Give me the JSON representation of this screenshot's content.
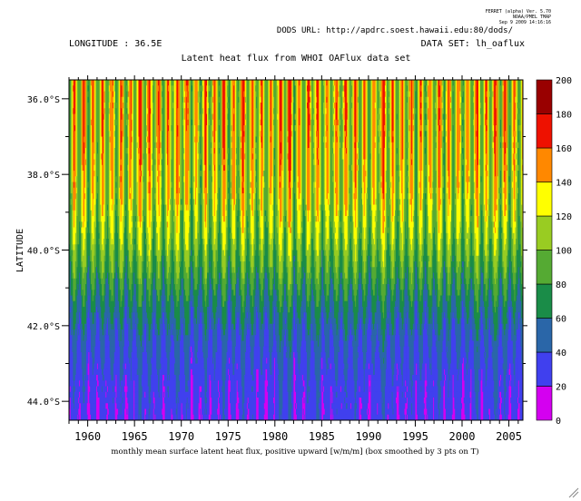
{
  "header": {
    "program": "FERRET (alpha) Ver. 5.70",
    "org": "NOAA/PMEL TMAP",
    "timestamp": "Sep  9 2009 14:16:16",
    "dods_url": "DODS URL: http://apdrc.soest.hawaii.edu:80/dods/",
    "longitude": "LONGITUDE : 36.5E",
    "dataset": "DATA SET: lh_oaflux"
  },
  "chart_data": {
    "type": "heatmap",
    "title": "Latent heat flux from WHOI OAFlux data set",
    "xlabel": "monthly mean surface latent heat flux, positive upward [w/m/m] (box smoothed by 3 pts on T)",
    "ylabel": "LATITUDE",
    "x_range": [
      1958,
      2006.5
    ],
    "x_ticks": [
      1960,
      1965,
      1970,
      1975,
      1980,
      1985,
      1990,
      1995,
      2000,
      2005
    ],
    "y_range": [
      -35.5,
      -44.5
    ],
    "y_ticks": [
      "36.0°S",
      "38.0°S",
      "40.0°S",
      "42.0°S",
      "44.0°S"
    ],
    "y_tick_values": [
      -36,
      -38,
      -40,
      -42,
      -44
    ],
    "colorbar": {
      "levels": [
        0,
        20,
        40,
        60,
        80,
        100,
        120,
        140,
        160,
        180,
        200
      ],
      "colors": [
        "#d400f0",
        "#4040ee",
        "#2a66a8",
        "#1a8c48",
        "#55aa33",
        "#99cc22",
        "#ffff00",
        "#ff8800",
        "#ee1100",
        "#990000"
      ]
    },
    "latitude_profile": {
      "latitudes": [
        -35.5,
        -36.5,
        -37.5,
        -38.5,
        -39.5,
        -40.5,
        -41.5,
        -42.5,
        -43.5,
        -44.5
      ],
      "typical_values": [
        125,
        125,
        122,
        118,
        105,
        85,
        60,
        42,
        32,
        28
      ],
      "amplitude": [
        40,
        40,
        38,
        34,
        28,
        22,
        16,
        12,
        10,
        10
      ]
    }
  }
}
